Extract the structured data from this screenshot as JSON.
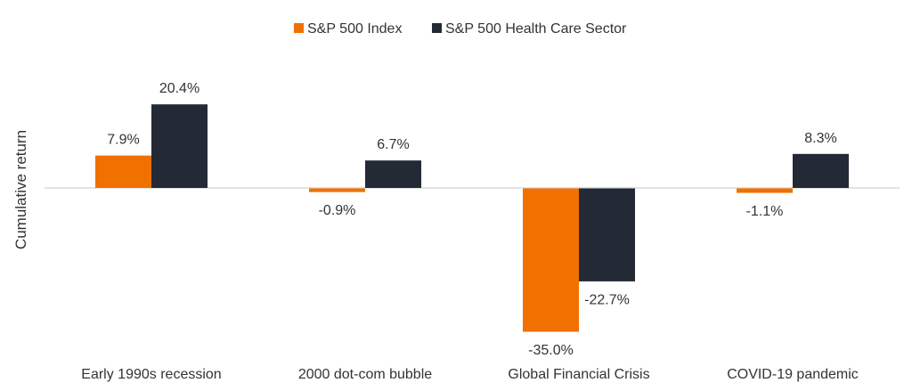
{
  "colors": {
    "sp500": "#f07000",
    "healthcare": "#232a36",
    "baseline": "#d9d9d9",
    "text": "#333333"
  },
  "chart_data": {
    "type": "bar",
    "title": "",
    "xlabel": "",
    "ylabel": "Cumulative return",
    "categories": [
      "Early 1990s recession",
      "2000 dot-com bubble",
      "Global Financial Crisis",
      "COVID-19 pandemic"
    ],
    "series": [
      {
        "name": "S&P 500 Index",
        "values": [
          7.9,
          -0.9,
          -35.0,
          -1.1
        ],
        "labels": [
          "7.9%",
          "-0.9%",
          "-35.0%",
          "-1.1%"
        ]
      },
      {
        "name": "S&P 500 Health Care Sector",
        "values": [
          20.4,
          6.7,
          -22.7,
          8.3
        ],
        "labels": [
          "20.4%",
          "6.7%",
          "-22.7%",
          "8.3%"
        ]
      }
    ],
    "ylim": [
      -40,
      30
    ],
    "grid": false,
    "legend_position": "top-center"
  }
}
